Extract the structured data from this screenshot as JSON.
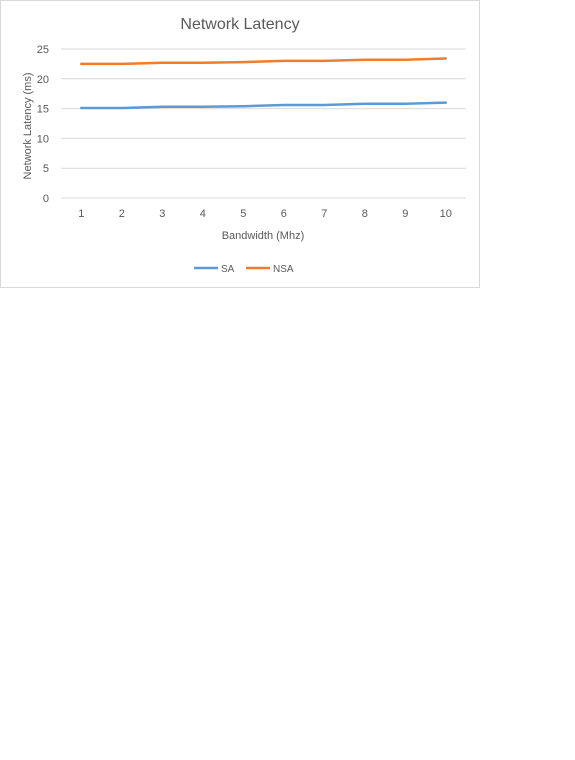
{
  "chart_data": {
    "type": "line",
    "title": "Network Latency",
    "xlabel": "Bandwidth (Mhz)",
    "ylabel": "Network Latency (ms)",
    "x": [
      1,
      2,
      3,
      4,
      5,
      6,
      7,
      8,
      9,
      10
    ],
    "ylim": [
      0,
      25
    ],
    "yticks": [
      0,
      5,
      10,
      15,
      20,
      25
    ],
    "grid": true,
    "legend_position": "bottom",
    "series": [
      {
        "name": "SA",
        "color": "#5b9bd5",
        "values": [
          15.1,
          15.1,
          15.3,
          15.3,
          15.4,
          15.6,
          15.6,
          15.8,
          15.8,
          16.0
        ]
      },
      {
        "name": "NSA",
        "color": "#ed7d31",
        "values": [
          22.5,
          22.5,
          22.7,
          22.7,
          22.8,
          23.0,
          23.0,
          23.2,
          23.2,
          23.4
        ]
      }
    ]
  }
}
